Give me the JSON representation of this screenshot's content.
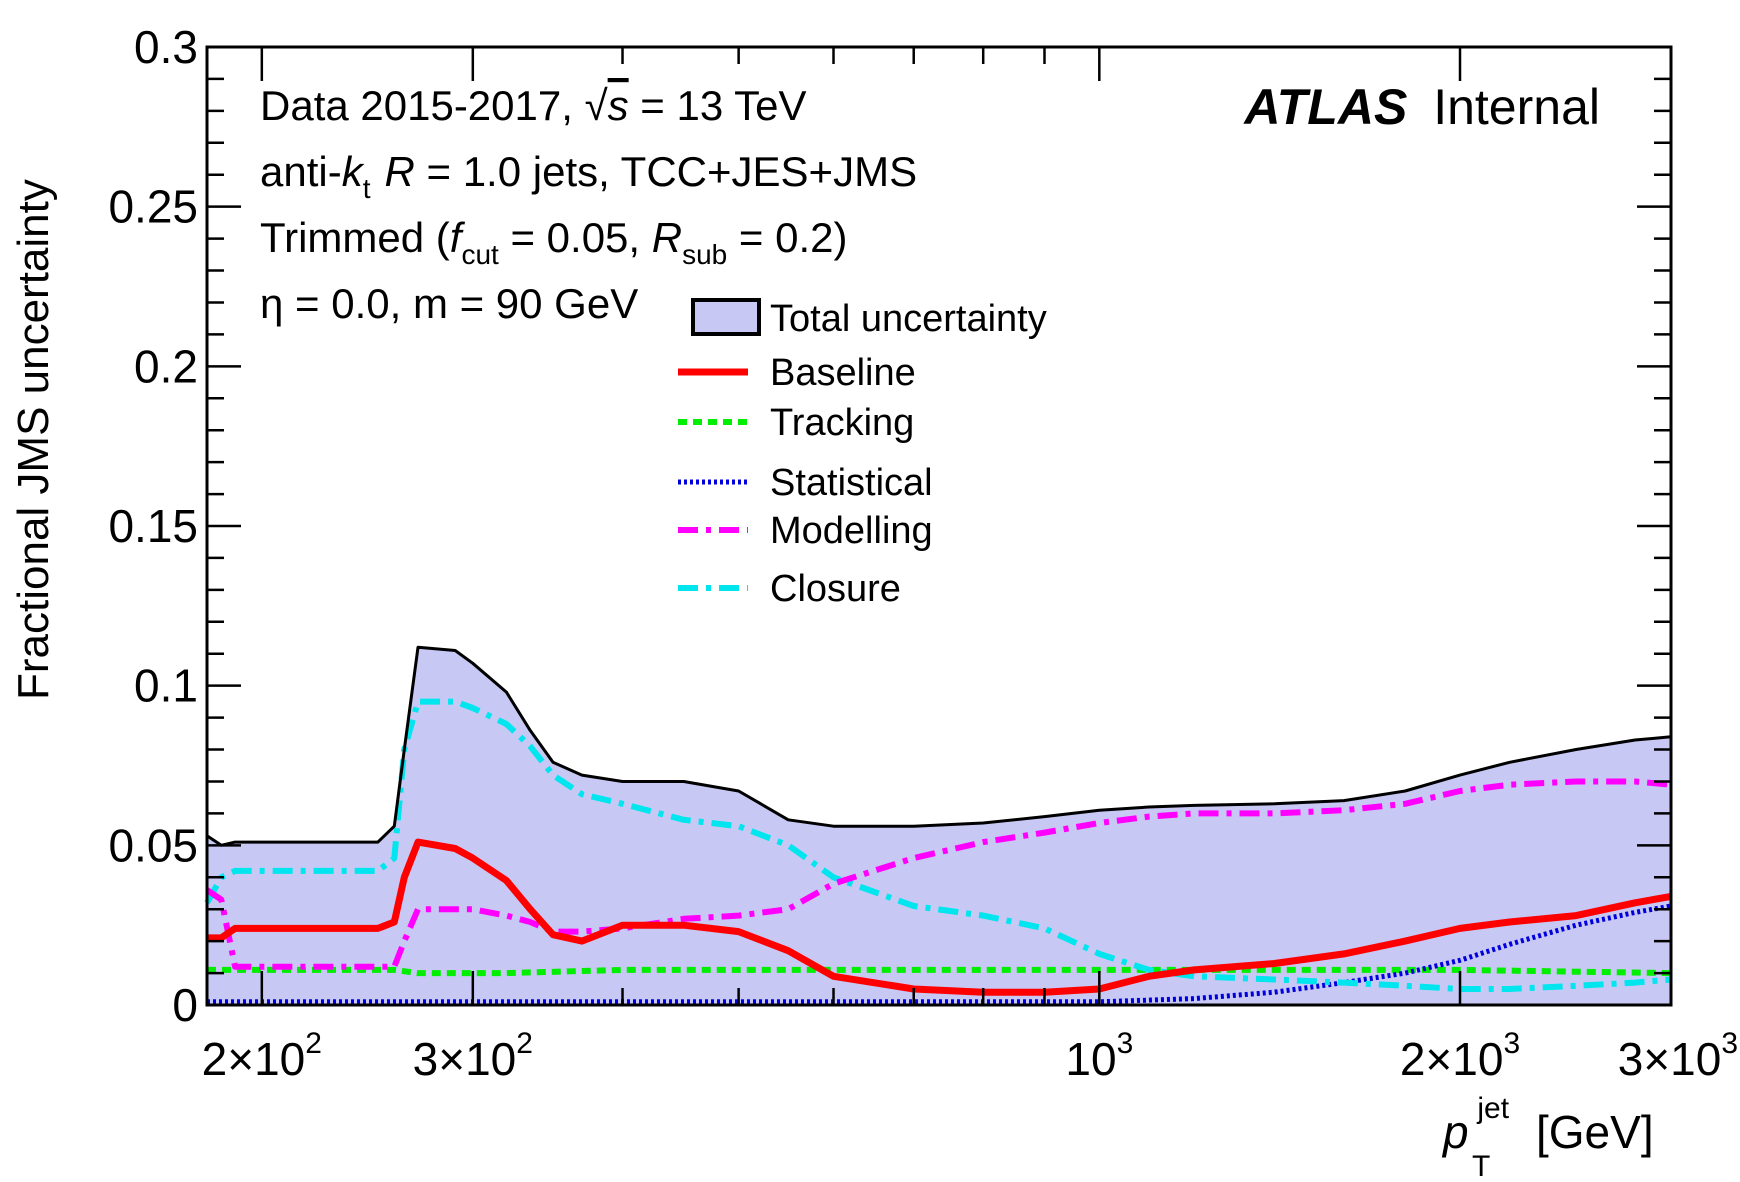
{
  "chart_data": {
    "type": "line",
    "ylabel": "Fractional JMS uncertainty",
    "xlabel_main": "p",
    "xlabel_sup": "jet",
    "xlabel_sub": "T",
    "xlabel_unit": "[GeV]",
    "xscale": "log",
    "xlim": [
      180,
      3000
    ],
    "ylim": [
      0,
      0.3
    ],
    "y_ticks": [
      {
        "v": 0,
        "label": "0"
      },
      {
        "v": 0.05,
        "label": "0.05"
      },
      {
        "v": 0.1,
        "label": "0.1"
      },
      {
        "v": 0.15,
        "label": "0.15"
      },
      {
        "v": 0.2,
        "label": "0.2"
      },
      {
        "v": 0.25,
        "label": "0.25"
      },
      {
        "v": 0.3,
        "label": "0.3"
      }
    ],
    "x_ticks": [
      {
        "v": 200,
        "base": "2×10",
        "exp": "2"
      },
      {
        "v": 300,
        "base": "3×10",
        "exp": "2"
      },
      {
        "v": 1000,
        "base": "10",
        "exp": "3"
      },
      {
        "v": 2000,
        "base": "2×10",
        "exp": "3"
      },
      {
        "v": 3000,
        "base": "3×10",
        "exp": "3"
      }
    ],
    "atlas_bold": "ATLAS",
    "atlas_rest": "Internal",
    "info": {
      "line1_pre": "Data 2015-2017, ",
      "line1_sqrt": "√",
      "line1_s": "s",
      "line1_post": " = 13 TeV",
      "line2_a": "anti-",
      "line2_k": "k",
      "line2_t": "t",
      "line2_R": "R",
      "line2_post": " = 1.0 jets, TCC+JES+JMS",
      "line3_a": "Trimmed (",
      "line3_f": "f",
      "line3_cut": "cut",
      "line3_mid": " = 0.05, ",
      "line3_R": "R",
      "line3_sub": "sub",
      "line3_end": " = 0.2)",
      "line4": "η = 0.0, m = 90 GeV"
    },
    "legend": [
      {
        "label": "Total uncertainty",
        "kind": "fill",
        "color": "#c8c8f5"
      },
      {
        "label": "Baseline",
        "kind": "line",
        "color": "#ff0000"
      },
      {
        "label": "Tracking",
        "kind": "line",
        "color": "#00ee00"
      },
      {
        "label": "Statistical",
        "kind": "line",
        "color": "#0000dd"
      },
      {
        "label": "Modelling",
        "kind": "line",
        "color": "#ff00ff"
      },
      {
        "label": "Closure",
        "kind": "line",
        "color": "#00e5ee"
      }
    ],
    "series": [
      {
        "name": "Total uncertainty",
        "color": "#000000",
        "fill": "#c8c8f5",
        "width": 3,
        "x": [
          180,
          185,
          190,
          250,
          258,
          263,
          270,
          290,
          300,
          320,
          335,
          350,
          370,
          400,
          450,
          500,
          550,
          600,
          700,
          800,
          900,
          1000,
          1100,
          1200,
          1400,
          1600,
          1800,
          2000,
          2200,
          2500,
          2800,
          3000
        ],
        "y": [
          0.053,
          0.05,
          0.051,
          0.051,
          0.056,
          0.08,
          0.112,
          0.111,
          0.107,
          0.098,
          0.086,
          0.076,
          0.072,
          0.07,
          0.07,
          0.067,
          0.058,
          0.056,
          0.056,
          0.057,
          0.059,
          0.061,
          0.062,
          0.0625,
          0.063,
          0.064,
          0.067,
          0.072,
          0.076,
          0.08,
          0.083,
          0.084
        ]
      },
      {
        "name": "Baseline",
        "color": "#ff0000",
        "width": 7,
        "dash": "",
        "x": [
          180,
          185,
          190,
          250,
          258,
          263,
          270,
          290,
          300,
          320,
          335,
          350,
          370,
          400,
          450,
          500,
          550,
          600,
          700,
          800,
          900,
          1000,
          1100,
          1200,
          1400,
          1600,
          1800,
          2000,
          2200,
          2500,
          2800,
          3000
        ],
        "y": [
          0.021,
          0.021,
          0.024,
          0.024,
          0.026,
          0.04,
          0.051,
          0.049,
          0.046,
          0.039,
          0.03,
          0.022,
          0.02,
          0.025,
          0.025,
          0.023,
          0.017,
          0.009,
          0.005,
          0.004,
          0.004,
          0.005,
          0.009,
          0.011,
          0.013,
          0.016,
          0.02,
          0.024,
          0.026,
          0.028,
          0.032,
          0.034
        ]
      },
      {
        "name": "Tracking",
        "color": "#00ee00",
        "width": 6,
        "dash": "9 6",
        "x": [
          180,
          250,
          258,
          270,
          290,
          320,
          400,
          600,
          1000,
          2000,
          3000
        ],
        "y": [
          0.011,
          0.011,
          0.011,
          0.01,
          0.01,
          0.01,
          0.011,
          0.011,
          0.011,
          0.011,
          0.01
        ]
      },
      {
        "name": "Statistical",
        "color": "#0000dd",
        "width": 5,
        "dash": "3 3",
        "x": [
          180,
          190,
          250,
          400,
          600,
          1000,
          1200,
          1400,
          1600,
          1800,
          2000,
          2200,
          2500,
          2800,
          3000
        ],
        "y": [
          0.001,
          0.001,
          0.001,
          0.001,
          0.001,
          0.001,
          0.002,
          0.004,
          0.007,
          0.01,
          0.014,
          0.019,
          0.025,
          0.029,
          0.031
        ]
      },
      {
        "name": "Modelling",
        "color": "#ff00ff",
        "width": 6,
        "dash": "20 8 5 8",
        "x": [
          180,
          185,
          190,
          250,
          258,
          263,
          270,
          290,
          300,
          320,
          335,
          350,
          370,
          400,
          450,
          500,
          550,
          600,
          700,
          800,
          900,
          1000,
          1100,
          1200,
          1400,
          1600,
          1800,
          2000,
          2200,
          2500,
          2800,
          3000
        ],
        "y": [
          0.036,
          0.033,
          0.012,
          0.012,
          0.012,
          0.02,
          0.03,
          0.03,
          0.03,
          0.028,
          0.026,
          0.023,
          0.023,
          0.024,
          0.027,
          0.028,
          0.03,
          0.038,
          0.046,
          0.051,
          0.054,
          0.057,
          0.059,
          0.06,
          0.06,
          0.061,
          0.063,
          0.067,
          0.069,
          0.07,
          0.07,
          0.069
        ]
      },
      {
        "name": "Closure",
        "color": "#00e5ee",
        "width": 6,
        "dash": "20 8 5 8",
        "x": [
          180,
          185,
          190,
          250,
          258,
          263,
          270,
          290,
          300,
          320,
          335,
          350,
          370,
          400,
          450,
          500,
          550,
          600,
          700,
          800,
          900,
          1000,
          1100,
          1200,
          1400,
          1600,
          1800,
          2000,
          2200,
          2500,
          2800,
          3000
        ],
        "y": [
          0.032,
          0.04,
          0.042,
          0.042,
          0.046,
          0.08,
          0.095,
          0.095,
          0.093,
          0.088,
          0.081,
          0.072,
          0.066,
          0.063,
          0.058,
          0.056,
          0.05,
          0.04,
          0.031,
          0.028,
          0.024,
          0.016,
          0.011,
          0.009,
          0.008,
          0.007,
          0.006,
          0.005,
          0.005,
          0.006,
          0.007,
          0.008
        ]
      }
    ]
  }
}
